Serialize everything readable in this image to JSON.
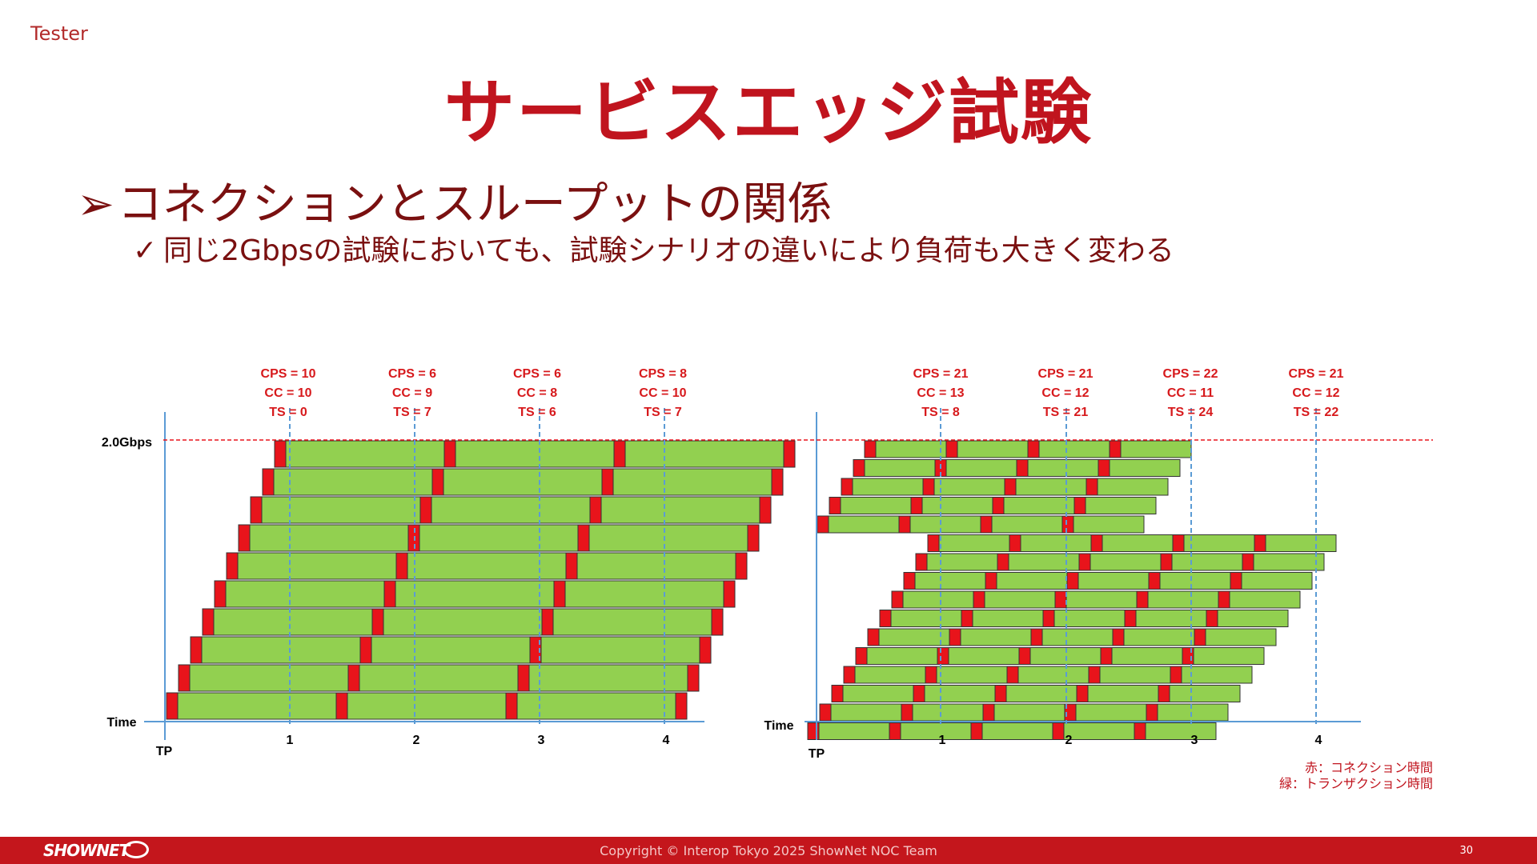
{
  "header": {
    "corner_label": "Tester",
    "title": "サービスエッジ試験"
  },
  "bullets": {
    "main": "コネクションとスループットの関係",
    "main_marker": "➢",
    "sub": "同じ2Gbpsの試験においても、試験シナリオの違いにより負荷も大きく変わる",
    "sub_marker": "✓"
  },
  "diagram": {
    "colors": {
      "connection": "#e8141b",
      "transaction": "#92d050",
      "guide": "#5b9bd5",
      "limit": "#e8141b",
      "axis": "#5b9bd5",
      "label": "#d7191c"
    },
    "left": {
      "y_top_label": "2.0Gbps",
      "y_label": "Time",
      "origin_label": "TP",
      "ticks": [
        "1",
        "2",
        "3",
        "4"
      ],
      "measurements": [
        {
          "cps": "CPS = 10",
          "cc": "CC = 10",
          "ts": "TS = 0"
        },
        {
          "cps": "CPS = 6",
          "cc": "CC = 9",
          "ts": "TS = 7"
        },
        {
          "cps": "CPS = 6",
          "cc": "CC = 8",
          "ts": "TS = 6"
        },
        {
          "cps": "CPS = 8",
          "cc": "CC = 10",
          "ts": "TS = 7"
        }
      ]
    },
    "right": {
      "y_label": "Time",
      "origin_label": "TP",
      "ticks": [
        "1",
        "2",
        "3",
        "4"
      ],
      "measurements": [
        {
          "cps": "CPS = 21",
          "cc": "CC = 13",
          "ts": "TS = 8"
        },
        {
          "cps": "CPS = 21",
          "cc": "CC = 12",
          "ts": "TS = 21"
        },
        {
          "cps": "CPS = 22",
          "cc": "CC = 11",
          "ts": "TS = 24"
        },
        {
          "cps": "CPS = 21",
          "cc": "CC = 12",
          "ts": "TS = 22"
        }
      ]
    }
  },
  "legend": {
    "red": "赤：コネクション時間",
    "green": "緑：トランザクション時間"
  },
  "footer": {
    "logo": "SHOWNET",
    "copyright": "Copyright © Interop Tokyo 2025 ShowNet NOC Team",
    "page_number": "30"
  }
}
